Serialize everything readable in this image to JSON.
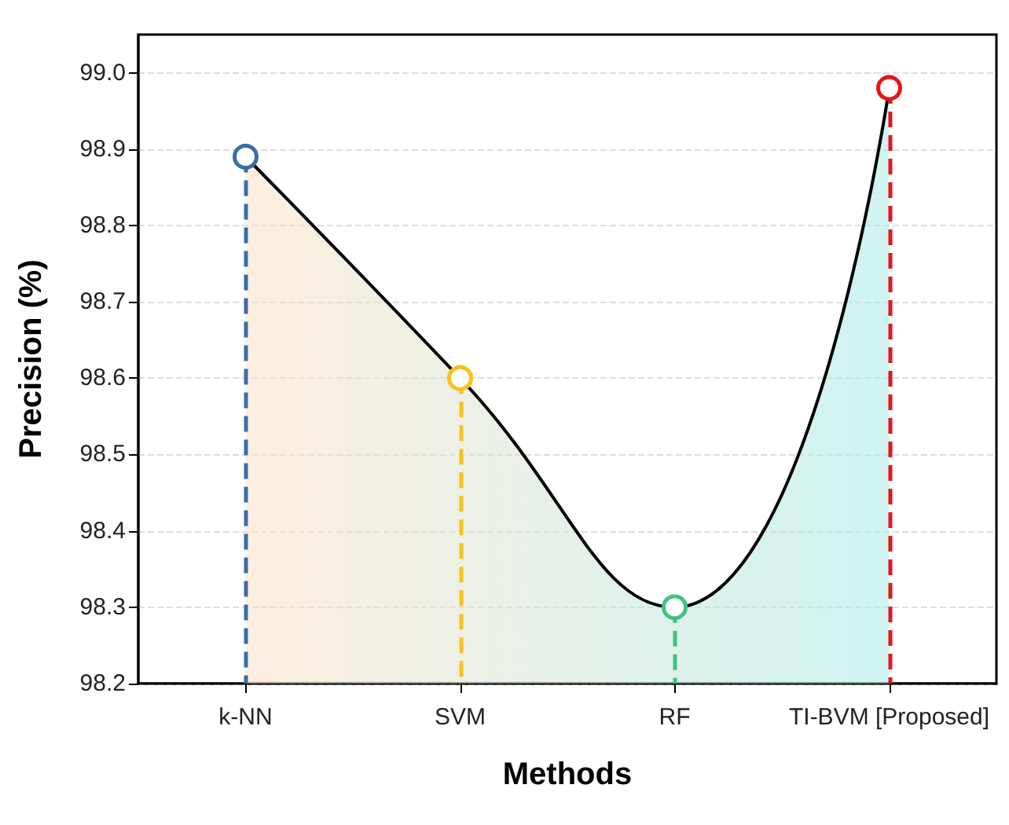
{
  "chart_data": {
    "type": "area",
    "xlabel": "Methods",
    "ylabel": "Precision (%)",
    "categories": [
      "k-NN",
      "SVM",
      "RF",
      "TI-BVM [Proposed]"
    ],
    "series": [
      {
        "color": "#000000",
        "marker": "none",
        "values": [
          98.89,
          98.6,
          98.3,
          98.98
        ]
      },
      {
        "type": "lollipop",
        "colors": [
          "#3a6ea5",
          "#f7c21a",
          "#3cc47c",
          "#e8141b"
        ],
        "values": [
          98.89,
          98.6,
          98.3,
          98.98
        ],
        "line_style": "dashed",
        "marker": "circle"
      }
    ],
    "ylim": [
      98.2,
      99.05
    ],
    "yticks": [
      98.2,
      98.3,
      98.4,
      98.5,
      98.6,
      98.7,
      98.8,
      98.9,
      {
        "value": 99,
        "label": "99.0"
      }
    ],
    "grid": "y"
  }
}
